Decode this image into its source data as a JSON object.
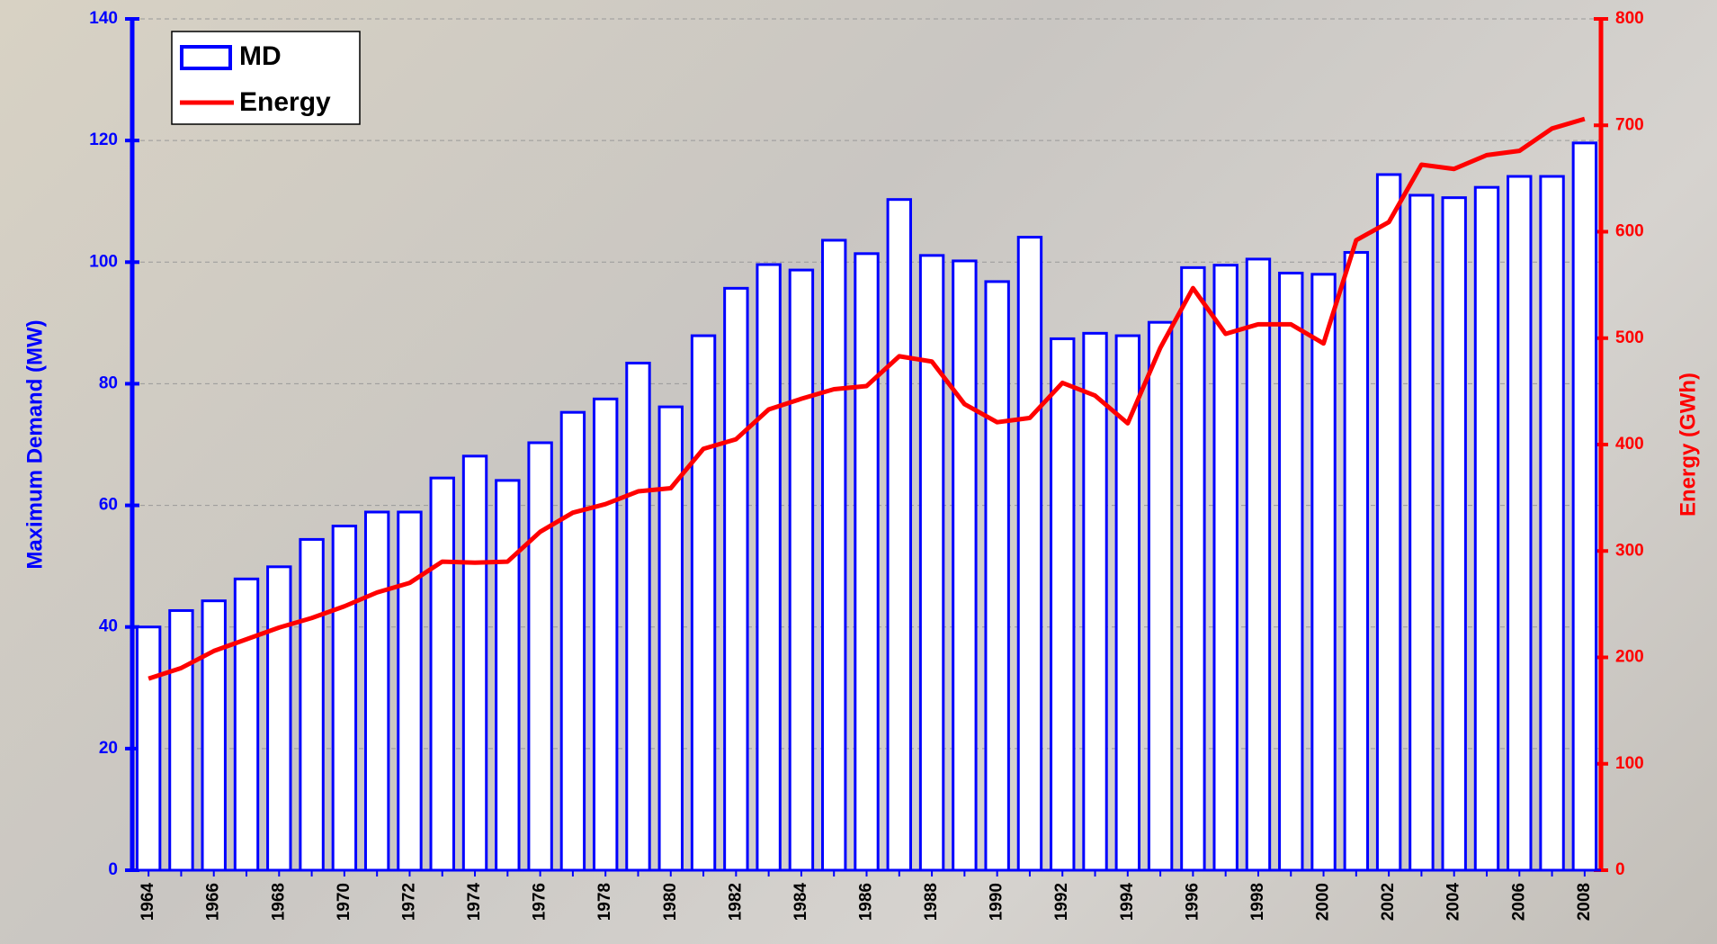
{
  "chart_data": {
    "type": "bar",
    "categories": [
      "1964",
      null,
      "1966",
      null,
      "1968",
      null,
      "1970",
      null,
      "1972",
      null,
      "1974",
      null,
      "1976",
      null,
      "1978",
      null,
      "1980",
      null,
      "1982",
      null,
      "1984",
      null,
      "1986",
      null,
      "1988",
      null,
      "1990",
      null,
      "1992",
      null,
      "1994",
      null,
      "1996",
      null,
      "1998",
      null,
      "2000",
      null,
      "2002",
      null,
      "2004",
      null,
      "2006",
      null,
      "2008"
    ],
    "series": [
      {
        "name": "MD",
        "type": "bar",
        "color": "#0000ff",
        "axis": "y",
        "values": [
          40,
          42.7,
          44.3,
          47.9,
          49.9,
          54.4,
          56.6,
          58.9,
          58.9,
          64.5,
          68.1,
          64.1,
          70.3,
          75.3,
          77.5,
          83.4,
          76.2,
          87.9,
          95.7,
          99.6,
          98.7,
          103.6,
          101.4,
          110.3,
          101.1,
          100.2,
          96.8,
          104.1,
          87.4,
          88.3,
          87.9,
          90.1,
          99.1,
          99.5,
          100.5,
          98.2,
          98,
          101.6,
          114.4,
          111,
          110.6,
          112.3,
          114.1,
          114.1,
          119.6
        ]
      },
      {
        "name": "Energy",
        "type": "line",
        "color": "#ff0000",
        "axis": "y2",
        "values": [
          180,
          190,
          206,
          217,
          228,
          237,
          248,
          261,
          270,
          290,
          289,
          290,
          318,
          336,
          344,
          356,
          359,
          396,
          405,
          433,
          443,
          452,
          455,
          483,
          478,
          438,
          421,
          425,
          458,
          446,
          420,
          491,
          547,
          504,
          513,
          513,
          495,
          592,
          609,
          663,
          659,
          672,
          676,
          697,
          706
        ]
      }
    ],
    "y_label": "Maximum Demand (MW)",
    "y2_label": "Energy (GWh)",
    "ylim": [
      0,
      140
    ],
    "yticks": [
      0,
      20,
      40,
      60,
      80,
      100,
      120,
      140
    ],
    "y2lim": [
      0,
      800
    ],
    "y2ticks": [
      0,
      100,
      200,
      300,
      400,
      500,
      600,
      700,
      800
    ],
    "grid": true,
    "legend": "top-left"
  }
}
